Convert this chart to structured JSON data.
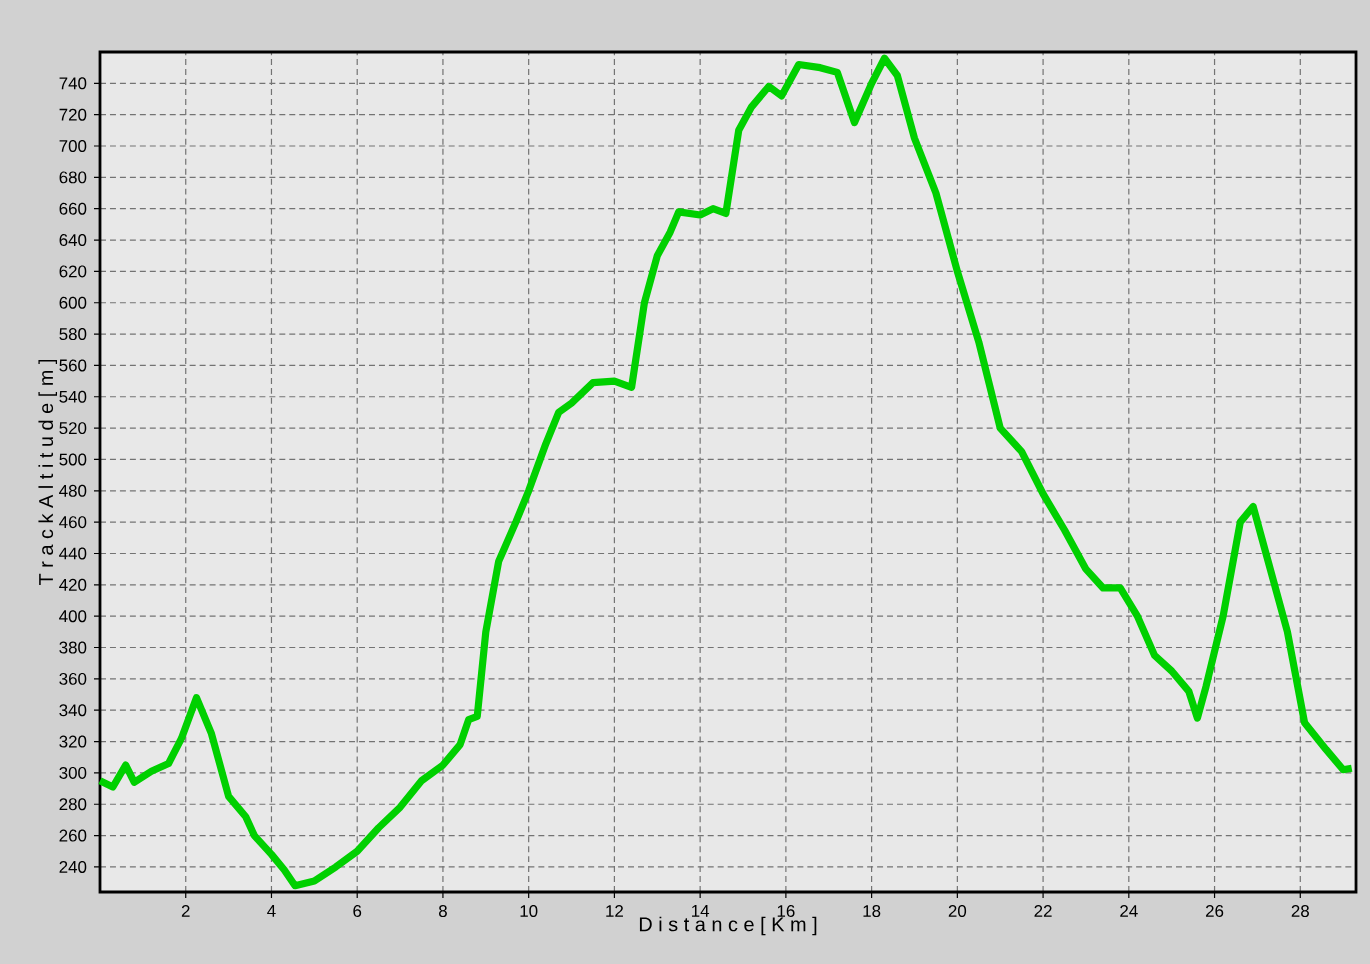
{
  "chart_data": {
    "type": "line",
    "xlabel": "D i s t a n c e   [ K m ]",
    "ylabel": "T r a c k   A l t i t u d e   [ m ]",
    "x": [
      0,
      0.3,
      0.6,
      0.8,
      1.2,
      1.6,
      1.9,
      2.25,
      2.6,
      3.0,
      3.4,
      3.6,
      4.0,
      4.3,
      4.55,
      5.0,
      5.5,
      6.0,
      6.5,
      7.0,
      7.5,
      8.0,
      8.4,
      8.6,
      8.8,
      9.0,
      9.3,
      9.7,
      10.0,
      10.4,
      10.7,
      11.0,
      11.5,
      12.0,
      12.4,
      12.7,
      13.0,
      13.3,
      13.5,
      14.0,
      14.3,
      14.6,
      14.9,
      15.2,
      15.6,
      15.9,
      16.3,
      16.8,
      17.2,
      17.6,
      18.0,
      18.3,
      18.6,
      19.0,
      19.5,
      20.0,
      20.5,
      21.0,
      21.5,
      22.0,
      22.5,
      23.0,
      23.4,
      23.8,
      24.2,
      24.6,
      25.0,
      25.4,
      25.6,
      25.8,
      26.2,
      26.6,
      26.9,
      27.2,
      27.7,
      28.1,
      28.6,
      29.0,
      29.2
    ],
    "series": [
      {
        "values": [
          295,
          291,
          305,
          294,
          301,
          306,
          322,
          348,
          325,
          285,
          272,
          260,
          248,
          238,
          228,
          231,
          240,
          250,
          265,
          278,
          295,
          305,
          318,
          334,
          336,
          390,
          435,
          460,
          480,
          510,
          530,
          536,
          549,
          550,
          546,
          600,
          630,
          645,
          658,
          656,
          660,
          657,
          710,
          725,
          738,
          732,
          752,
          750,
          747,
          715,
          740,
          756,
          745,
          705,
          670,
          620,
          575,
          520,
          505,
          478,
          455,
          430,
          418,
          418,
          400,
          375,
          365,
          352,
          335,
          355,
          400,
          460,
          470,
          440,
          390,
          332,
          315,
          302,
          303
        ],
        "color": "#00d000"
      }
    ],
    "xlim": [
      0,
      29.3
    ],
    "ylim": [
      224,
      760
    ],
    "xticks": [
      2,
      4,
      6,
      8,
      10,
      12,
      14,
      16,
      18,
      20,
      22,
      24,
      26,
      28
    ],
    "yticks": [
      240,
      260,
      280,
      300,
      320,
      340,
      360,
      380,
      400,
      420,
      440,
      460,
      480,
      500,
      520,
      540,
      560,
      580,
      600,
      620,
      640,
      660,
      680,
      700,
      720,
      740
    ],
    "grid": true
  }
}
